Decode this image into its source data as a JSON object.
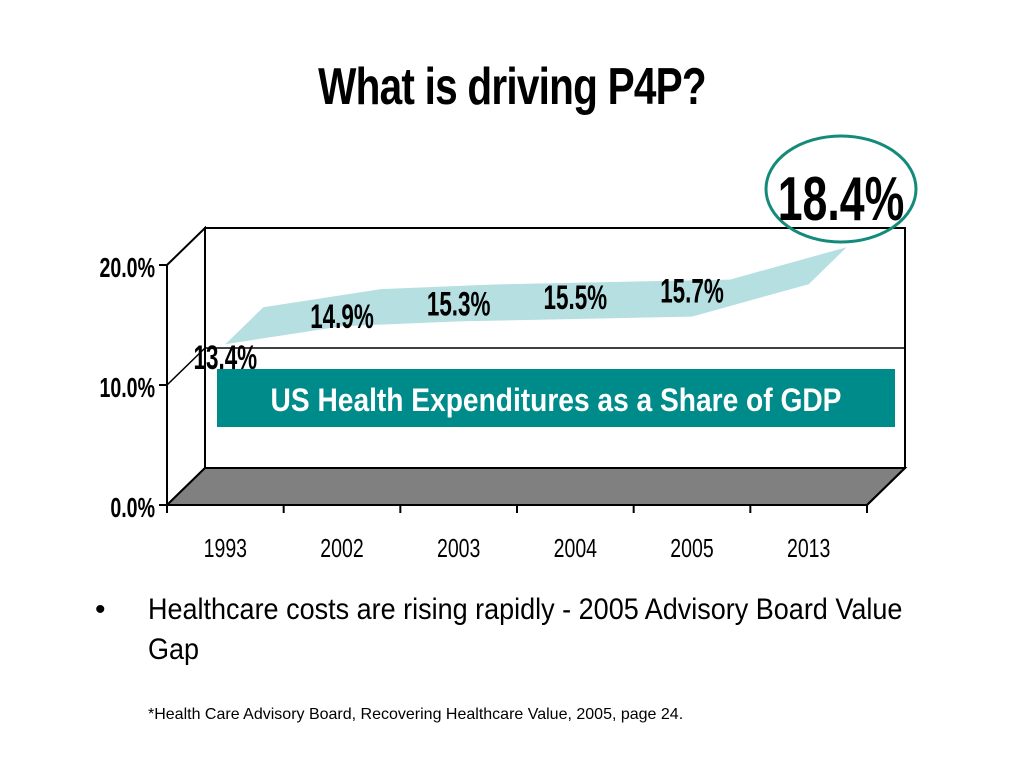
{
  "slide": {
    "title": "What is driving P4P?",
    "bullet": "Healthcare costs are rising rapidly - 2005 Advisory Board Value Gap",
    "bullet_marker": "•",
    "footnote": "*Health Care Advisory Board, Recovering Healthcare Value, 2005, page 24."
  },
  "colors": {
    "series_fill": "#b6dfe2",
    "banner_bg": "#008b8b",
    "highlight_ring": "#138a7a",
    "floor": "#808080"
  },
  "chart_data": {
    "type": "area",
    "title": "US Health Expenditures as a Share of GDP",
    "categories": [
      "1993",
      "2002",
      "2003",
      "2004",
      "2005",
      "2013"
    ],
    "series": [
      {
        "values": [
          13.4,
          14.9,
          15.3,
          15.5,
          15.7,
          18.4
        ]
      }
    ],
    "data_labels": [
      "13.4%",
      "14.9%",
      "15.3%",
      "15.5%",
      "15.7%",
      "18.4%"
    ],
    "highlighted_label": "18.4%",
    "y_ticks": [
      "0.0%",
      "10.0%",
      "20.0%"
    ],
    "y_tick_values": [
      0,
      10,
      20
    ],
    "ylim": [
      0,
      20
    ],
    "three_d": true,
    "grid": true
  }
}
